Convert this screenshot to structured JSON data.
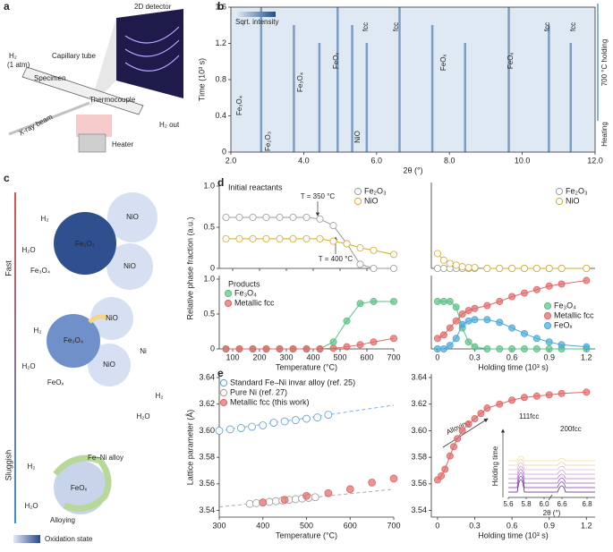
{
  "panel_labels": [
    "a",
    "b",
    "c",
    "d",
    "e"
  ],
  "setup": {
    "detector": "2D detector",
    "gas_in": "H₂",
    "pressure": "(1 atm)",
    "tube": "Capillary tube",
    "specimen": "Specimen",
    "thermocouple": "Thermocouple",
    "gas_out": "H₂ out",
    "beam": "X-ray beam",
    "heater": "Heater"
  },
  "mechanism": {
    "fast": "Fast",
    "slow": "Sluggish",
    "colorbar": "Oxidation state",
    "stage1": [
      "NiO",
      "NiO",
      "Fe₂O₃",
      "H₂",
      "H₂O",
      "Fe₃O₄"
    ],
    "stage2": [
      "NiO",
      "NiO",
      "Fe₃O₄",
      "Ni",
      "H₂",
      "H₂O",
      "FeOₓ",
      "H₂",
      "H₂O"
    ],
    "stage3": [
      "H₂",
      "Fe–Ni alloy",
      "FeOₓ",
      "H₂O",
      "Alloying"
    ]
  },
  "chart_data": [
    {
      "type": "heatmap",
      "xlabel": "2θ (°)",
      "ylabel": "Time (10³ s)",
      "xlim": [
        2,
        12
      ],
      "ylim": [
        0,
        1.6
      ],
      "xticks": [
        {
          "value": 2,
          "label": "2.0"
        },
        {
          "value": 4,
          "label": "4.0"
        },
        {
          "value": 6,
          "label": "6.0"
        },
        {
          "value": 8,
          "label": "8.0"
        },
        {
          "value": 10,
          "label": "10.0"
        },
        {
          "value": 12,
          "label": "12.0"
        }
      ],
      "yticks": [
        0,
        0.4,
        0.8,
        1.2,
        1.6
      ],
      "colorbar_label": "Sqrt. intensity",
      "annotations": [
        "Fe₃O₄",
        "Fe₂O₃",
        "Fe₃O₄",
        "FeOₓ",
        "fcc",
        "NiO",
        "FeOₓ",
        "FeOₓ",
        "fcc",
        "fcc",
        "fcc"
      ],
      "regions": [
        "700 °C holding",
        "Heating"
      ]
    },
    {
      "type": "line",
      "title": "Initial reactants",
      "ylabel": "Relative phase fraction (a.u.)",
      "xlim": [
        50,
        700
      ],
      "ylim": [
        0,
        1
      ],
      "xticks": [
        100,
        200,
        300,
        400,
        500,
        600,
        700
      ],
      "yticks": [
        0,
        0.5,
        {
          "value": 1,
          "label": "1.0"
        }
      ],
      "annotations": [
        "T = 350 °C",
        "T = 400 °C"
      ],
      "x": [
        75,
        125,
        175,
        225,
        275,
        325,
        375,
        425,
        475,
        525,
        575,
        625,
        700
      ],
      "series": [
        {
          "name": "Fe₂O₃",
          "color": "#9a9a9a",
          "marker": "open",
          "values": [
            0.62,
            0.62,
            0.62,
            0.62,
            0.62,
            0.62,
            0.62,
            0.6,
            0.52,
            0.3,
            0.05,
            0,
            0
          ]
        },
        {
          "name": "NiO",
          "color": "#d4aa2e",
          "marker": "open",
          "values": [
            0.36,
            0.36,
            0.36,
            0.36,
            0.36,
            0.36,
            0.36,
            0.36,
            0.33,
            0.3,
            0.25,
            0.22,
            0.17
          ]
        }
      ]
    },
    {
      "type": "line",
      "title": "Products",
      "xlabel": "Temperature (°C)",
      "xlim": [
        50,
        700
      ],
      "ylim": [
        0,
        1
      ],
      "xticks": [
        100,
        200,
        300,
        400,
        500,
        600,
        700
      ],
      "yticks": [
        0,
        0.5,
        {
          "value": 1,
          "label": "1.0"
        }
      ],
      "x": [
        75,
        125,
        175,
        225,
        275,
        325,
        375,
        425,
        475,
        525,
        575,
        625,
        700
      ],
      "series": [
        {
          "name": "Fe₃O₄",
          "color": "#5cbf85",
          "marker": "filled",
          "values": [
            0,
            0,
            0,
            0,
            0,
            0,
            0,
            0,
            0.1,
            0.4,
            0.65,
            0.68,
            0.68
          ]
        },
        {
          "name": "Metallic fcc",
          "color": "#e06666",
          "marker": "filled",
          "values": [
            0,
            0,
            0,
            0,
            0,
            0,
            0,
            0,
            0.01,
            0.03,
            0.06,
            0.1,
            0.15
          ]
        }
      ]
    },
    {
      "type": "line",
      "xlim": [
        -0.05,
        1.27
      ],
      "ylim": [
        0,
        1
      ],
      "xticks": [
        0,
        0.3,
        0.6,
        0.9,
        1.2
      ],
      "x": [
        0,
        0.05,
        0.1,
        0.15,
        0.2,
        0.25,
        0.3,
        0.4,
        0.5,
        0.6,
        0.7,
        0.8,
        0.9,
        1.0,
        1.2
      ],
      "series": [
        {
          "name": "Fe₂O₃",
          "color": "#9a9a9a",
          "marker": "open",
          "values": [
            0,
            0,
            0,
            0,
            0,
            0,
            0,
            0,
            0,
            0,
            0,
            0,
            0,
            0,
            0
          ]
        },
        {
          "name": "NiO",
          "color": "#d4aa2e",
          "marker": "open",
          "values": [
            0.18,
            0.1,
            0.06,
            0.04,
            0.02,
            0.01,
            0.01,
            0,
            0,
            0,
            0,
            0,
            0,
            0,
            0
          ]
        }
      ]
    },
    {
      "type": "line",
      "xlabel": "Holding time (10³ s)",
      "xlim": [
        -0.05,
        1.27
      ],
      "ylim": [
        0,
        1
      ],
      "xticks": [
        0,
        0.3,
        0.6,
        0.9,
        1.2
      ],
      "x": [
        0,
        0.05,
        0.1,
        0.15,
        0.2,
        0.25,
        0.3,
        0.4,
        0.5,
        0.6,
        0.7,
        0.8,
        0.9,
        1.0,
        1.2
      ],
      "series": [
        {
          "name": "Fe₃O₄",
          "color": "#5cbf85",
          "marker": "filled",
          "values": [
            0.68,
            0.68,
            0.68,
            0.6,
            0.3,
            0.1,
            0.03,
            0,
            0,
            0,
            0,
            0,
            0,
            0,
            0
          ]
        },
        {
          "name": "Metallic fcc",
          "color": "#e06666",
          "marker": "filled",
          "values": [
            0.15,
            0.2,
            0.3,
            0.4,
            0.5,
            0.55,
            0.58,
            0.62,
            0.68,
            0.75,
            0.8,
            0.85,
            0.9,
            0.93,
            0.98
          ]
        },
        {
          "name": "FeOₓ",
          "color": "#4aa8d8",
          "marker": "filled",
          "values": [
            0,
            0,
            0.05,
            0.15,
            0.35,
            0.4,
            0.42,
            0.42,
            0.38,
            0.3,
            0.22,
            0.15,
            0.1,
            0.06,
            0.03
          ]
        }
      ]
    },
    {
      "type": "scatter",
      "xlabel": "Temperature (°C)",
      "ylabel": "Lattice parameter (Å)",
      "xlim": [
        300,
        700
      ],
      "ylim": [
        3.535,
        3.64
      ],
      "xticks": [
        300,
        400,
        500,
        600,
        700
      ],
      "yticks": [
        3.54,
        3.56,
        {
          "value": 3.58,
          "label": "3.58"
        },
        {
          "value": 3.6,
          "label": "3.60"
        },
        3.62,
        3.64
      ],
      "series": [
        {
          "name": "Standard Fe–Ni invar alloy (ref. 25)",
          "color": "#5b9bd5",
          "marker": "open",
          "dashed": true,
          "x": [
            300,
            325,
            350,
            375,
            400,
            425,
            450,
            475,
            500,
            525,
            550
          ],
          "values": [
            3.6,
            3.601,
            3.602,
            3.603,
            3.604,
            3.606,
            3.607,
            3.608,
            3.609,
            3.61,
            3.612
          ]
        },
        {
          "name": "Pure Ni (ref. 27)",
          "color": "#9a9a9a",
          "marker": "open",
          "dashed": true,
          "x": [
            370,
            385,
            400,
            415,
            430,
            445,
            460,
            475,
            490,
            505,
            520
          ],
          "values": [
            3.545,
            3.5455,
            3.546,
            3.5465,
            3.547,
            3.5475,
            3.548,
            3.5485,
            3.549,
            3.5495,
            3.55
          ]
        },
        {
          "name": "Metallic fcc (this work)",
          "color": "#e06666",
          "marker": "filled",
          "x": [
            400,
            450,
            500,
            550,
            600,
            650,
            700
          ],
          "values": [
            3.546,
            3.548,
            3.551,
            3.553,
            3.556,
            3.561,
            3.564
          ]
        }
      ]
    },
    {
      "type": "line",
      "xlabel": "Holding time (10³ s)",
      "xlim": [
        -0.05,
        1.27
      ],
      "ylim": [
        3.535,
        3.64
      ],
      "xticks": [
        0,
        0.3,
        0.6,
        0.9,
        1.2
      ],
      "yticks": [
        3.54,
        3.56,
        {
          "value": 3.58,
          "label": "3.58"
        },
        {
          "value": 3.6,
          "label": "3.60"
        },
        3.62,
        3.64
      ],
      "annotations": [
        "Alloying"
      ],
      "x": [
        0,
        0.03,
        0.06,
        0.1,
        0.13,
        0.16,
        0.2,
        0.25,
        0.3,
        0.35,
        0.4,
        0.5,
        0.6,
        0.7,
        0.8,
        0.9,
        1.0,
        1.2
      ],
      "series": [
        {
          "name": "Metallic fcc",
          "color": "#e06666",
          "marker": "filled",
          "values": [
            3.563,
            3.566,
            3.571,
            3.581,
            3.588,
            3.594,
            3.6,
            3.605,
            3.609,
            3.613,
            3.617,
            3.62,
            3.623,
            3.625,
            3.626,
            3.627,
            3.628,
            3.629
          ]
        }
      ],
      "inset": {
        "xlabel": "2θ (°)",
        "ylabel": "Holding time",
        "peaks": [
          "111fcc",
          "200fcc"
        ],
        "xticks": [
          5.6,
          5.8,
          {
            "value": 6,
            "label": "6.0"
          },
          6.6,
          6.8
        ]
      }
    }
  ]
}
